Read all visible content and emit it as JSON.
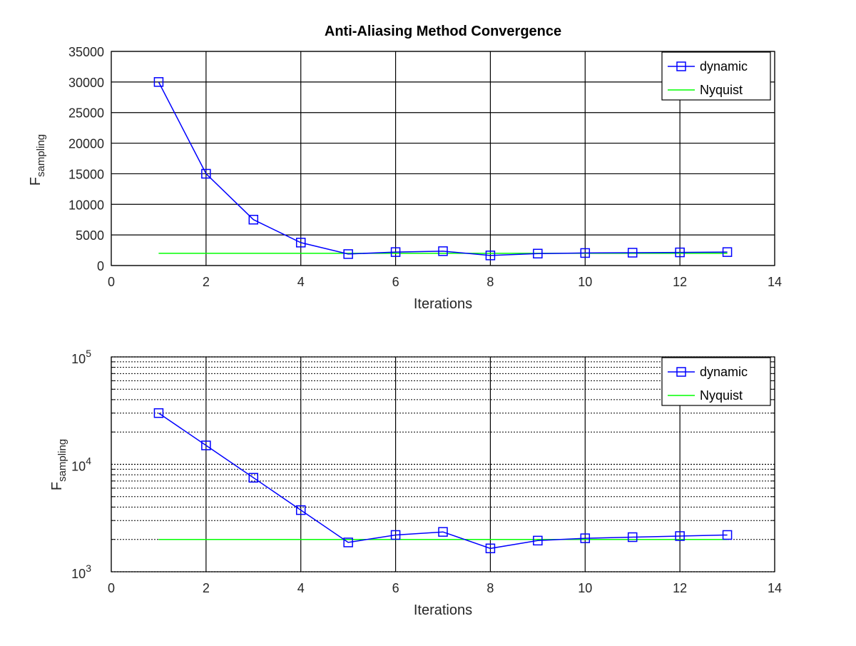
{
  "chart_data": [
    {
      "type": "line",
      "title": "Anti-Aliasing Method Convergence",
      "xlabel": "Iterations",
      "ylabel": "F",
      "ylabel_sub": "sampling",
      "xlim": [
        0,
        14
      ],
      "ylim": [
        0,
        35000
      ],
      "yscale": "linear",
      "grid": true,
      "legend_position": "top-right",
      "x_ticks": [
        "0",
        "2",
        "4",
        "6",
        "8",
        "10",
        "12",
        "14"
      ],
      "y_ticks": [
        "0",
        "5000",
        "10000",
        "15000",
        "20000",
        "25000",
        "30000",
        "35000"
      ],
      "series": [
        {
          "name": "dynamic",
          "color": "#0000ff",
          "marker": "square",
          "x": [
            1,
            2,
            3,
            4,
            5,
            6,
            7,
            8,
            9,
            10,
            11,
            12,
            13
          ],
          "values": [
            30000,
            15000,
            7500,
            3750,
            1875,
            2200,
            2350,
            1650,
            1950,
            2050,
            2100,
            2150,
            2200
          ]
        },
        {
          "name": "Nyquist",
          "color": "#00ff00",
          "marker": "none",
          "x": [
            1,
            13
          ],
          "values": [
            2000,
            2000
          ]
        }
      ]
    },
    {
      "type": "line",
      "title": "",
      "xlabel": "Iterations",
      "ylabel": "F",
      "ylabel_sub": "sampling",
      "xlim": [
        0,
        14
      ],
      "ylim": [
        1000,
        100000
      ],
      "yscale": "log",
      "grid": true,
      "legend_position": "top-right",
      "x_ticks": [
        "0",
        "2",
        "4",
        "6",
        "8",
        "10",
        "12",
        "14"
      ],
      "y_ticks": [
        {
          "base": "10",
          "exp": "3"
        },
        {
          "base": "10",
          "exp": "4"
        },
        {
          "base": "10",
          "exp": "5"
        }
      ],
      "series": [
        {
          "name": "dynamic",
          "color": "#0000ff",
          "marker": "square",
          "x": [
            1,
            2,
            3,
            4,
            5,
            6,
            7,
            8,
            9,
            10,
            11,
            12,
            13
          ],
          "values": [
            30000,
            15000,
            7500,
            3750,
            1875,
            2200,
            2350,
            1650,
            1950,
            2050,
            2100,
            2150,
            2200
          ]
        },
        {
          "name": "Nyquist",
          "color": "#00ff00",
          "marker": "none",
          "x": [
            1,
            13
          ],
          "values": [
            2000,
            2000
          ]
        }
      ]
    }
  ]
}
